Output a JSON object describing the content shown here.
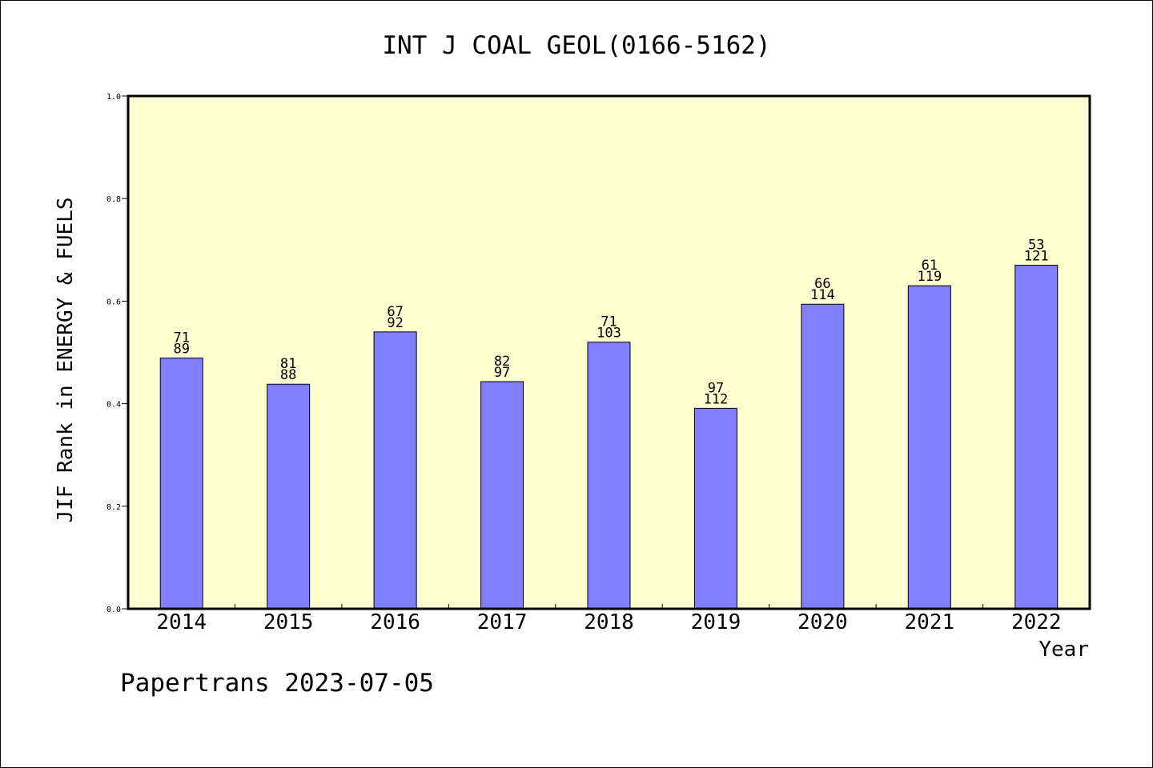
{
  "chart_data": {
    "type": "bar",
    "title": "INT J COAL GEOL(0166-5162)",
    "xlabel": "Year",
    "ylabel": "JIF Rank in ENERGY & FUELS",
    "ylim": [
      0,
      1
    ],
    "yticks": [
      "0.0",
      "0.2",
      "0.4",
      "0.6",
      "0.8",
      "1.0"
    ],
    "grid": false,
    "legend": "none",
    "categories": [
      "2014",
      "2015",
      "2016",
      "2017",
      "2018",
      "2019",
      "2020",
      "2021",
      "2022"
    ],
    "values": [
      0.489,
      0.438,
      0.54,
      0.443,
      0.52,
      0.391,
      0.594,
      0.63,
      0.67
    ],
    "rank_labels": [
      "71",
      "81",
      "67",
      "82",
      "71",
      "97",
      "66",
      "61",
      "53"
    ],
    "total_labels": [
      "89",
      "88",
      "92",
      "97",
      "103",
      "112",
      "114",
      "119",
      "121"
    ],
    "colors": {
      "bar": "#8080ff",
      "plot_background": "#ffffd0",
      "frame": "#000000"
    }
  },
  "footer": "Papertrans 2023-07-05"
}
